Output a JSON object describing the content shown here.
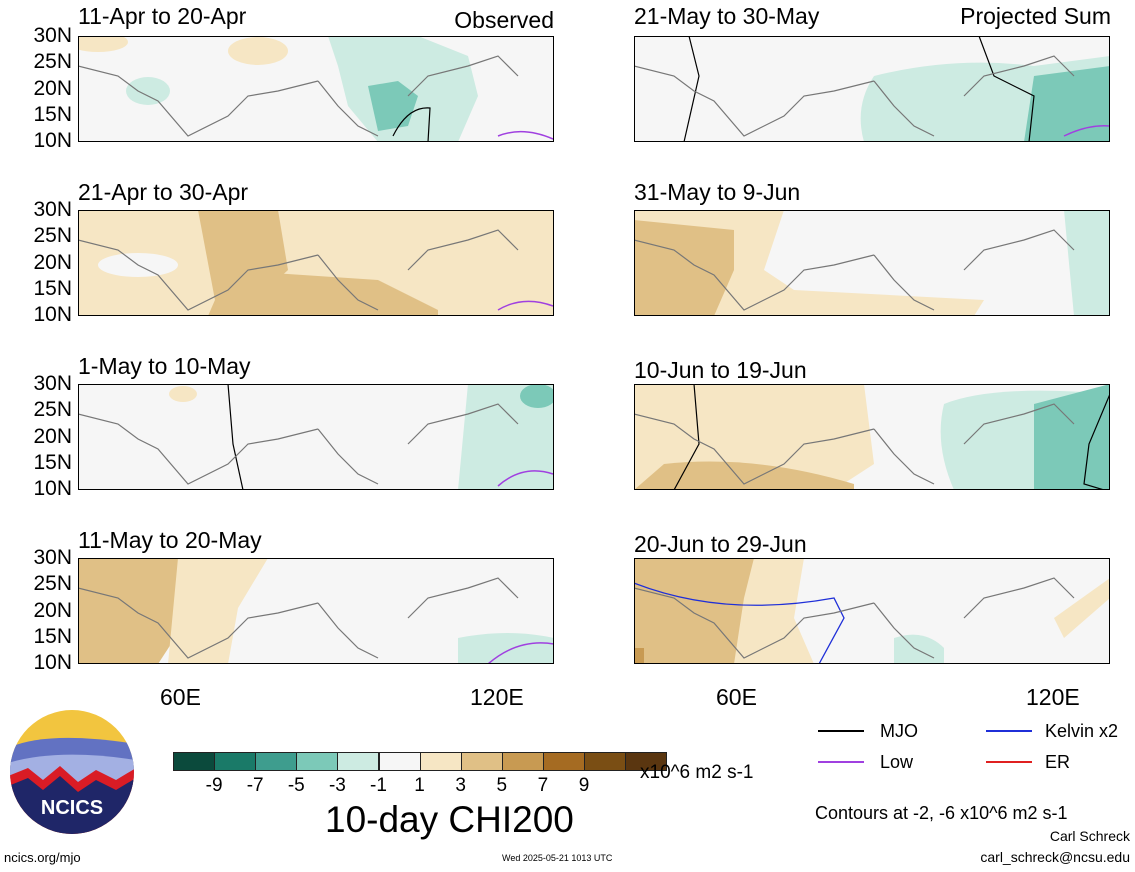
{
  "left_header": {
    "status": "Observed"
  },
  "right_header": {
    "status": "Projected Sum"
  },
  "panels_left": [
    {
      "title": "11-Apr to 20-Apr"
    },
    {
      "title": "21-Apr to 30-Apr"
    },
    {
      "title": "1-May to 10-May"
    },
    {
      "title": "11-May to 20-May"
    }
  ],
  "panels_right": [
    {
      "title": "21-May to 30-May"
    },
    {
      "title": "31-May to 9-Jun"
    },
    {
      "title": "10-Jun to 19-Jun"
    },
    {
      "title": "20-Jun to 29-Jun"
    }
  ],
  "lat_labels": [
    "30N",
    "25N",
    "20N",
    "15N",
    "10N"
  ],
  "lon_labels": [
    "60E",
    "120E"
  ],
  "colorbar": {
    "ticks": [
      "-9",
      "-7",
      "-5",
      "-3",
      "-1",
      "1",
      "3",
      "5",
      "7",
      "9"
    ],
    "colors": [
      "#0b4a3c",
      "#1a7a68",
      "#3e9d8e",
      "#7cc9b8",
      "#cdebe2",
      "#f6f6f6",
      "#f6e6c4",
      "#e0c086",
      "#c89a52",
      "#a56b22",
      "#7a4e14",
      "#5a3610"
    ],
    "units": "x10^6 m2 s-1",
    "title": "10-day CHI200"
  },
  "legend": {
    "mjo": "MJO",
    "mjo_color": "#000000",
    "kelvin": "Kelvin x2",
    "kelvin_color": "#1f2fd8",
    "low": "Low",
    "low_color": "#a040e0",
    "er": "ER",
    "er_color": "#e02020",
    "contours_note": "Contours at -2, -6 x10^6 m2 s-1"
  },
  "credit": {
    "author": "Carl Schreck",
    "email": "carl_schreck@ncsu.edu"
  },
  "footer": {
    "url": "ncics.org/mjo",
    "timestamp": "Wed 2025-05-21 1013 UTC"
  },
  "logo": {
    "text": "NCICS"
  }
}
